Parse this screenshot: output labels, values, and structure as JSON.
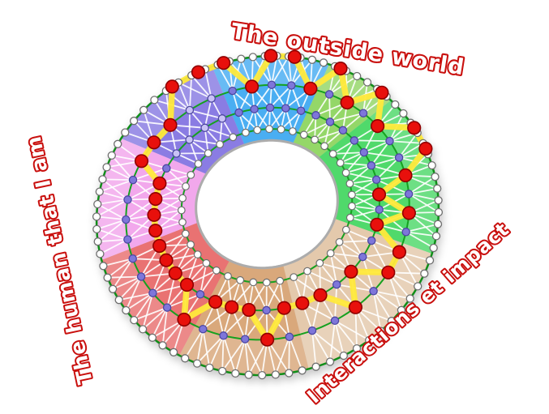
{
  "labels": {
    "top": "The outside world",
    "left": "The human that I am",
    "right": "Interactions et impact"
  },
  "label_style": {
    "outline_color": "#C9100E",
    "fill_color": "#FFFFFF"
  },
  "wheel": {
    "ring_count": 4,
    "ring_line_color": "#15A11F",
    "outer_ring_line_color": "#0F8E18",
    "spoke_line_color": "#FFFFFF",
    "profile_path_color": "#FFE93B",
    "hole_color": "#FFFFFF",
    "hole_border_color": "#ACACAC",
    "node_colors": {
      "outer_rim": "#FFFFFF",
      "inner_ring": "#FFFFFF",
      "mid_rings": "#7E76DA",
      "mid_rings_in_purple_sector": "#C9C2F5",
      "selected": "#E8100C",
      "rim_stroke": "#6E6E6E",
      "mid_stroke": "#4C46A0",
      "selected_stroke": "#8F0000"
    },
    "sectors": [
      {
        "name": "blue",
        "color": "#4AAEF2",
        "span_deg": 40,
        "levels": [
          4,
          3,
          4,
          4,
          3
        ]
      },
      {
        "name": "green-light",
        "color": "#94D768",
        "span_deg": 25,
        "levels": [
          4,
          3,
          4
        ]
      },
      {
        "name": "green",
        "color": "#50D96B",
        "span_deg": 60,
        "levels": [
          3,
          4,
          4,
          3,
          2,
          3,
          2
        ]
      },
      {
        "name": "tan-light",
        "color": "#E4C9AC",
        "span_deg": 60,
        "levels": [
          3,
          3,
          2,
          3,
          2,
          2
        ]
      },
      {
        "name": "tan",
        "color": "#D9A87B",
        "span_deg": 45,
        "levels": [
          2,
          3,
          2,
          2,
          2
        ]
      },
      {
        "name": "salmon",
        "color": "#E97272",
        "span_deg": 45,
        "levels": [
          3,
          2,
          2,
          2,
          2
        ]
      },
      {
        "name": "pink",
        "color": "#F2A8EC",
        "span_deg": 45,
        "levels": [
          2,
          2,
          2,
          2,
          3
        ]
      },
      {
        "name": "purple",
        "color": "#8A7CE3",
        "span_deg": 40,
        "levels": [
          3,
          3,
          4,
          4
        ]
      }
    ],
    "start_angle_deg": -5
  }
}
